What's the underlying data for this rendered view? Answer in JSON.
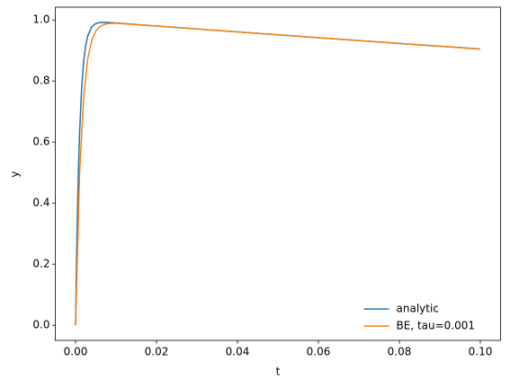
{
  "chart_data": {
    "type": "line",
    "x_label": "t",
    "y_label": "y",
    "xlim": [
      -0.005,
      0.105
    ],
    "ylim": [
      -0.0496,
      1.0418
    ],
    "xticks": [
      {
        "value": 0,
        "label": "0.00"
      },
      {
        "value": 0.02,
        "label": "0.02"
      },
      {
        "value": 0.04,
        "label": "0.04"
      },
      {
        "value": 0.06,
        "label": "0.06"
      },
      {
        "value": 0.08,
        "label": "0.08"
      },
      {
        "value": 0.1,
        "label": "0.10"
      }
    ],
    "yticks": [
      {
        "value": 0,
        "label": "0.0"
      },
      {
        "value": 0.2,
        "label": "0.2"
      },
      {
        "value": 0.4,
        "label": "0.4"
      },
      {
        "value": 0.6,
        "label": "0.6"
      },
      {
        "value": 0.8,
        "label": "0.8"
      },
      {
        "value": 1,
        "label": "1.0"
      }
    ],
    "legend": "lower right",
    "series": [
      {
        "name": "analytic",
        "color": "#1f77b4",
        "x": [
          0,
          0.00025,
          0.0005,
          0.00075,
          0.001,
          0.0015,
          0.002,
          0.0025,
          0.003,
          0.004,
          0.005,
          0.006,
          0.007,
          0.008,
          0.01,
          0.02,
          0.04,
          0.06,
          0.08,
          0.1
        ],
        "values": [
          0,
          0.221,
          0.393,
          0.5269,
          0.6311,
          0.7754,
          0.8627,
          0.9154,
          0.9472,
          0.9777,
          0.9883,
          0.9915,
          0.9921,
          0.9917,
          0.99,
          0.9802,
          0.9608,
          0.9418,
          0.9231,
          0.9048
        ]
      },
      {
        "name": "BE, tau=0.001",
        "color": "#ff7f0e",
        "x": [
          0,
          0.001,
          0.002,
          0.003,
          0.004,
          0.005,
          0.006,
          0.007,
          0.008,
          0.009,
          0.01,
          0.02,
          0.04,
          0.06,
          0.08,
          0.1
        ],
        "values": [
          0,
          0.499,
          0.748,
          0.872,
          0.9335,
          0.9638,
          0.9784,
          0.9852,
          0.9881,
          0.989,
          0.9891,
          0.9802,
          0.9608,
          0.9419,
          0.9232,
          0.9049
        ]
      }
    ]
  }
}
